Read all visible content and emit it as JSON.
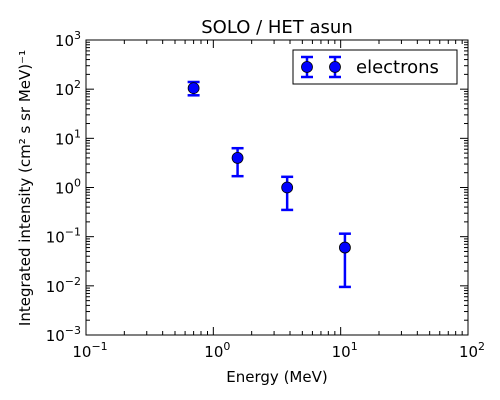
{
  "chart_data": {
    "type": "scatter",
    "title": "SOLO / HET asun",
    "xlabel": "Energy (MeV)",
    "ylabel": "Integrated intensity (cm² s sr MeV)⁻¹",
    "x_scale": "log",
    "y_scale": "log",
    "xlim": [
      0.1,
      100
    ],
    "ylim": [
      0.001,
      1000
    ],
    "x_ticks": [
      {
        "value": 0.1,
        "base": "10",
        "exp": "−1"
      },
      {
        "value": 1,
        "base": "10",
        "exp": "0"
      },
      {
        "value": 10,
        "base": "10",
        "exp": "1"
      },
      {
        "value": 100,
        "base": "10",
        "exp": "2"
      }
    ],
    "y_ticks": [
      {
        "value": 0.001,
        "base": "10",
        "exp": "−3"
      },
      {
        "value": 0.01,
        "base": "10",
        "exp": "−2"
      },
      {
        "value": 0.1,
        "base": "10",
        "exp": "−1"
      },
      {
        "value": 1,
        "base": "10",
        "exp": "0"
      },
      {
        "value": 10,
        "base": "10",
        "exp": "1"
      },
      {
        "value": 100,
        "base": "10",
        "exp": "2"
      },
      {
        "value": 1000,
        "base": "10",
        "exp": "3"
      }
    ],
    "legend_position": "top-right",
    "grid": false,
    "series": [
      {
        "name": "electrons",
        "color": "#0000ff",
        "points": [
          {
            "x": 0.7,
            "y": 105,
            "y_low": 75,
            "y_high": 140
          },
          {
            "x": 1.55,
            "y": 4.0,
            "y_low": 1.7,
            "y_high": 6.3
          },
          {
            "x": 3.8,
            "y": 1.0,
            "y_low": 0.35,
            "y_high": 1.65
          },
          {
            "x": 10.8,
            "y": 0.06,
            "y_low": 0.0095,
            "y_high": 0.115
          }
        ]
      }
    ]
  }
}
